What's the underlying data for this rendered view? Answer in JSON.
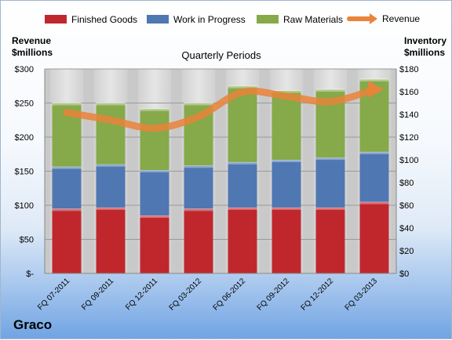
{
  "chart_data": {
    "type": "bar",
    "stacked": true,
    "title": "Quarterly Periods",
    "company": "Graco",
    "y_left_label": [
      "Revenue",
      "$millions"
    ],
    "y_right_label": [
      "Inventory",
      "$millions"
    ],
    "categories": [
      "FQ 07-2011",
      "FQ 09-2011",
      "FQ 12-2011",
      "FQ 03-2012",
      "FQ 06-2012",
      "FQ 09-2012",
      "FQ 12-2012",
      "FQ 03-2013"
    ],
    "series": [
      {
        "name": "Finished Goods",
        "axis": "right",
        "values": [
          57,
          58,
          51,
          57,
          58,
          58,
          58,
          63
        ]
      },
      {
        "name": "Work in Progress",
        "axis": "right",
        "values": [
          37,
          38,
          40,
          38,
          40,
          42,
          44,
          44
        ]
      },
      {
        "name": "Raw Materials",
        "axis": "right",
        "values": [
          56,
          54,
          54,
          55,
          67,
          61,
          60,
          64
        ]
      },
      {
        "name": "Revenue",
        "axis": "left",
        "type": "line",
        "values": [
          236,
          225,
          213,
          230,
          266,
          260,
          252,
          270
        ]
      }
    ],
    "y_left_ticks": [
      "$-",
      "$50",
      "$100",
      "$150",
      "$200",
      "$250",
      "$300"
    ],
    "y_right_ticks": [
      "$0",
      "$20",
      "$40",
      "$60",
      "$80",
      "$100",
      "$120",
      "$140",
      "$160",
      "$180"
    ],
    "ylim_left": [
      0,
      300
    ],
    "ylim_right": [
      0,
      180
    ],
    "colors": {
      "Finished Goods": "#c0272d",
      "Work in Progress": "#4f77b2",
      "Raw Materials": "#86a94a",
      "Revenue": "#e9843a",
      "plot_background": "#c9c9c9"
    },
    "grid": true,
    "legend": "top"
  }
}
